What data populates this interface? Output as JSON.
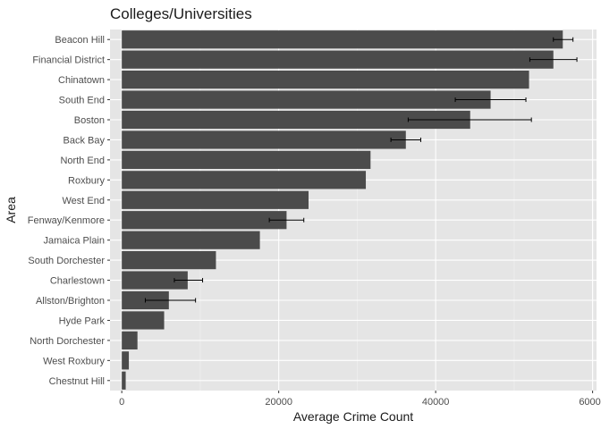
{
  "chart_data": {
    "type": "bar",
    "orientation": "horizontal",
    "title": "Colleges/Universities",
    "xlabel": "Average Crime Count",
    "ylabel": "Area",
    "xlim": [
      -1500,
      60500
    ],
    "xticks": [
      0,
      20000,
      40000,
      60000
    ],
    "grid": true,
    "categories": [
      "Beacon Hill",
      "Financial District",
      "Chinatown",
      "South End",
      "Boston",
      "Back Bay",
      "North End",
      "Roxbury",
      "West End",
      "Fenway/Kenmore",
      "Jamaica Plain",
      "South Dorchester",
      "Charlestown",
      "Allston/Brighton",
      "Hyde Park",
      "North Dorchester",
      "West Roxbury",
      "Chestnut Hill"
    ],
    "values": [
      56200,
      55000,
      51900,
      47000,
      44400,
      36200,
      31700,
      31100,
      23800,
      21000,
      17600,
      12000,
      8400,
      6000,
      5400,
      2000,
      900,
      500
    ],
    "error_low": [
      55000,
      52000,
      null,
      42500,
      36500,
      34300,
      null,
      null,
      null,
      18800,
      null,
      null,
      6700,
      3000,
      null,
      null,
      null,
      null
    ],
    "error_high": [
      57500,
      58000,
      null,
      51500,
      52200,
      38100,
      null,
      null,
      null,
      23200,
      null,
      null,
      10300,
      9400,
      null,
      null,
      null,
      null
    ],
    "colors": {
      "panel": "#e5e5e5",
      "grid_major": "#ffffff",
      "grid_minor": "#f2f2f2",
      "bar": "#4b4b4b",
      "errorbar": "#000000",
      "tick": "#333333"
    }
  }
}
